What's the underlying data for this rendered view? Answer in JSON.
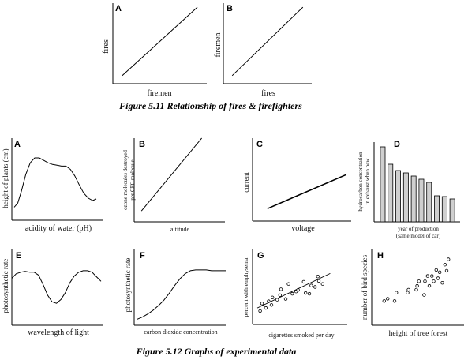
{
  "captions": {
    "fig511": "Figure 5.11 Relationship of fires & firefighters",
    "fig512": "Figure 5.12 Graphs of experimental data"
  },
  "chart_data": [
    {
      "id": "511A",
      "letter": "A",
      "type": "line",
      "xlabel": "firemen",
      "ylabel": "fires",
      "xlim": [
        0,
        10
      ],
      "ylim": [
        0,
        10
      ],
      "x": [
        1,
        9
      ],
      "y": [
        1,
        9.5
      ]
    },
    {
      "id": "511B",
      "letter": "B",
      "type": "line",
      "xlabel": "fires",
      "ylabel": "firemen",
      "xlim": [
        0,
        10
      ],
      "ylim": [
        0,
        10
      ],
      "x": [
        1,
        9
      ],
      "y": [
        1,
        9.5
      ]
    },
    {
      "id": "512A",
      "letter": "A",
      "type": "line",
      "xlabel": "acidity of water (pH)",
      "ylabel": "height of plants (cm)",
      "xlim": [
        0,
        10
      ],
      "ylim": [
        0,
        10
      ],
      "x": [
        0.0,
        0.4,
        0.8,
        1.3,
        1.8,
        2.3,
        2.8,
        3.3,
        3.8,
        4.3,
        4.8,
        5.3,
        5.8,
        6.3,
        6.8,
        7.3,
        7.8,
        8.3,
        8.8,
        9.2
      ],
      "y": [
        1.6,
        2.1,
        3.5,
        5.6,
        7.0,
        7.6,
        7.6,
        7.3,
        7.0,
        6.8,
        6.7,
        6.6,
        6.6,
        6.2,
        5.4,
        4.3,
        3.3,
        2.7,
        2.4,
        2.6
      ]
    },
    {
      "id": "512B",
      "letter": "B",
      "type": "line",
      "xlabel": "altitude",
      "ylabel": "ozone molecules destroyed per CFC molecule",
      "xlim": [
        0,
        10
      ],
      "ylim": [
        0,
        10
      ],
      "x": [
        1,
        9.3
      ],
      "y": [
        1.3,
        10
      ]
    },
    {
      "id": "512C",
      "letter": "C",
      "type": "line",
      "xlabel": "voltage",
      "ylabel": "current",
      "xlim": [
        0,
        10
      ],
      "ylim": [
        0,
        10
      ],
      "x": [
        1.5,
        9.5
      ],
      "y": [
        1.5,
        5.6
      ]
    },
    {
      "id": "512D",
      "letter": "D",
      "type": "bar",
      "xlabel": "year of production (same model of car)",
      "ylabel": "hydrocarbon concentration in exhaust when new",
      "xlim": [
        0,
        9
      ],
      "ylim": [
        0,
        10
      ],
      "values": [
        9.5,
        7.3,
        6.5,
        6.2,
        5.8,
        5.4,
        5.0,
        3.3,
        3.2,
        2.9
      ]
    },
    {
      "id": "512E",
      "letter": "E",
      "type": "line",
      "xlabel": "wavelength of light",
      "ylabel": "photosynthetic rate",
      "xlim": [
        0,
        10
      ],
      "ylim": [
        0,
        10
      ],
      "x": [
        0.0,
        0.5,
        1.0,
        1.5,
        2.0,
        2.5,
        3.0,
        3.5,
        4.0,
        4.5,
        5.0,
        5.5,
        6.0,
        6.5,
        7.0,
        7.5,
        8.0,
        8.5,
        9.0,
        9.5,
        10.0
      ],
      "y": [
        6.2,
        6.8,
        7.0,
        7.1,
        7.0,
        7.0,
        6.6,
        5.4,
        4.0,
        3.1,
        2.9,
        3.4,
        4.3,
        5.6,
        6.5,
        7.0,
        7.2,
        7.2,
        7.0,
        6.4,
        5.8
      ]
    },
    {
      "id": "512F",
      "letter": "F",
      "type": "line",
      "xlabel": "carbon dioxide concentration",
      "ylabel": "photosynthetic rate",
      "xlim": [
        0,
        10
      ],
      "ylim": [
        0,
        10
      ],
      "x": [
        0.0,
        0.6,
        1.2,
        1.8,
        2.4,
        3.0,
        3.6,
        4.2,
        4.8,
        5.4,
        6.0,
        6.6,
        7.2,
        7.8,
        8.4,
        9.0,
        9.6,
        10.0
      ],
      "y": [
        0.8,
        1.1,
        1.5,
        2.0,
        2.6,
        3.3,
        4.2,
        5.2,
        6.1,
        6.8,
        7.2,
        7.3,
        7.3,
        7.3,
        7.2,
        7.2,
        7.2,
        7.2
      ]
    },
    {
      "id": "512G",
      "letter": "G",
      "type": "scatter",
      "xlabel": "cigarettes smoked per day",
      "ylabel": "percent with emphysema",
      "xlim": [
        0,
        10
      ],
      "ylim": [
        0,
        10
      ],
      "x": [
        0.8,
        1.0,
        1.4,
        1.7,
        2.0,
        2.1,
        2.6,
        2.9,
        3.0,
        3.5,
        3.8,
        4.2,
        4.6,
        4.8,
        5.4,
        5.6,
        6.0,
        6.2,
        6.6,
        6.9,
        7.0,
        7.4
      ],
      "y": [
        1.8,
        2.8,
        2.2,
        3.1,
        2.6,
        3.6,
        3.3,
        3.9,
        4.7,
        3.4,
        5.4,
        4.1,
        4.4,
        4.6,
        5.7,
        4.2,
        4.1,
        5.2,
        5.0,
        6.4,
        5.8,
        5.4
      ],
      "trend": {
        "x": [
          0.5,
          8.2
        ],
        "y": [
          2.2,
          6.8
        ]
      }
    },
    {
      "id": "512H",
      "letter": "H",
      "type": "scatter",
      "xlabel": "height of tree forest",
      "ylabel": "number of bird species",
      "xlim": [
        0,
        10
      ],
      "ylim": [
        0,
        10
      ],
      "x": [
        0.8,
        1.2,
        2.0,
        2.2,
        3.5,
        3.6,
        4.5,
        4.6,
        4.8,
        5.4,
        5.5,
        5.8,
        6.0,
        6.3,
        6.5,
        6.8,
        7.0,
        7.2,
        7.5,
        7.8,
        8.0,
        8.2
      ],
      "y": [
        3.2,
        3.5,
        3.2,
        4.3,
        4.3,
        4.7,
        4.7,
        5.2,
        5.8,
        4.0,
        5.8,
        6.5,
        5.2,
        6.5,
        5.8,
        7.3,
        6.2,
        7.0,
        5.6,
        8.0,
        7.2,
        8.7
      ]
    }
  ]
}
